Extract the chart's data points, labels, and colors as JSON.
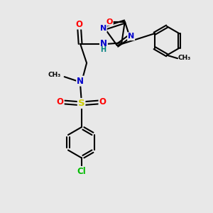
{
  "bg_color": "#e8e8e8",
  "bond_color": "#000000",
  "atom_colors": {
    "N": "#0000cc",
    "O": "#ff0000",
    "S": "#cccc00",
    "Cl": "#00bb00",
    "C": "#000000",
    "H": "#008080"
  },
  "figsize": [
    3.0,
    3.0
  ],
  "dpi": 100,
  "xlim": [
    0,
    10
  ],
  "ylim": [
    0,
    10
  ]
}
